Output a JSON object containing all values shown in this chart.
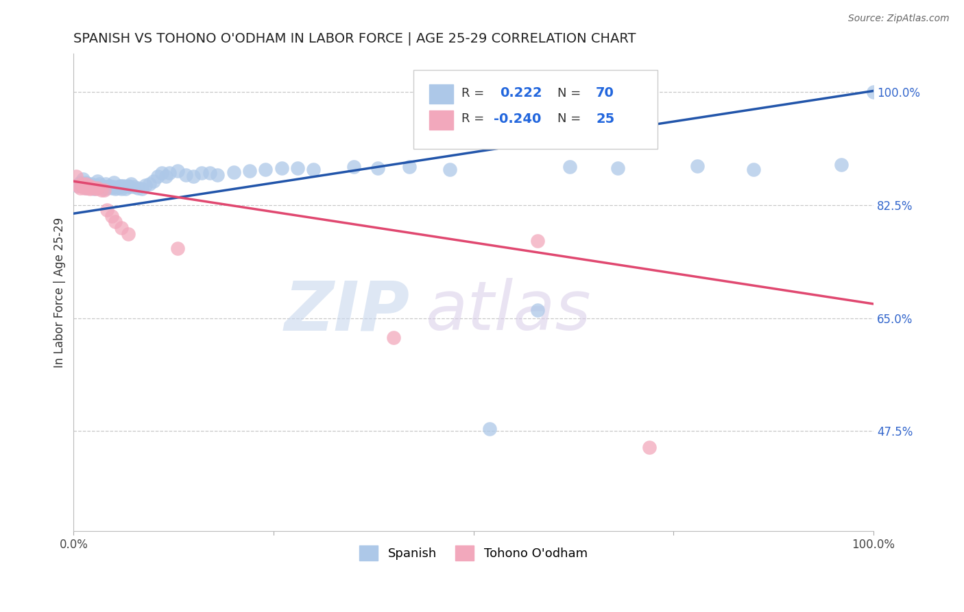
{
  "title": "SPANISH VS TOHONO O'ODHAM IN LABOR FORCE | AGE 25-29 CORRELATION CHART",
  "source_text": "Source: ZipAtlas.com",
  "ylabel": "In Labor Force | Age 25-29",
  "xlim": [
    0.0,
    1.0
  ],
  "ylim": [
    0.32,
    1.06
  ],
  "r_spanish": 0.222,
  "n_spanish": 70,
  "r_tohono": -0.24,
  "n_tohono": 25,
  "spanish_color": "#adc8e8",
  "tohono_color": "#f2a8bc",
  "spanish_line_color": "#2255aa",
  "tohono_line_color": "#e04870",
  "background_color": "#ffffff",
  "grid_color": "#c8c8c8",
  "ytick_positions": [
    1.0,
    0.825,
    0.65,
    0.475
  ],
  "ytick_labels": [
    "100.0%",
    "82.5%",
    "65.0%",
    "47.5%"
  ],
  "spanish_line_y0": 0.812,
  "spanish_line_y1": 1.002,
  "tohono_line_y0": 0.862,
  "tohono_line_y1": 0.672,
  "spanish_x": [
    0.005,
    0.008,
    0.01,
    0.012,
    0.014,
    0.015,
    0.015,
    0.016,
    0.018,
    0.02,
    0.022,
    0.025,
    0.025,
    0.028,
    0.03,
    0.03,
    0.032,
    0.035,
    0.038,
    0.04,
    0.04,
    0.042,
    0.045,
    0.048,
    0.05,
    0.05,
    0.052,
    0.055,
    0.058,
    0.06,
    0.06,
    0.063,
    0.065,
    0.068,
    0.07,
    0.072,
    0.075,
    0.08,
    0.085,
    0.09,
    0.095,
    0.1,
    0.105,
    0.11,
    0.115,
    0.12,
    0.13,
    0.14,
    0.15,
    0.16,
    0.17,
    0.18,
    0.2,
    0.22,
    0.24,
    0.26,
    0.28,
    0.3,
    0.35,
    0.38,
    0.42,
    0.47,
    0.52,
    0.58,
    0.62,
    0.68,
    0.78,
    0.85,
    0.96,
    1.0
  ],
  "spanish_y": [
    0.855,
    0.86,
    0.855,
    0.865,
    0.858,
    0.86,
    0.855,
    0.852,
    0.858,
    0.854,
    0.858,
    0.854,
    0.85,
    0.856,
    0.862,
    0.852,
    0.858,
    0.855,
    0.85,
    0.858,
    0.854,
    0.852,
    0.855,
    0.852,
    0.86,
    0.854,
    0.85,
    0.852,
    0.855,
    0.855,
    0.85,
    0.855,
    0.85,
    0.855,
    0.854,
    0.858,
    0.854,
    0.852,
    0.85,
    0.856,
    0.858,
    0.862,
    0.87,
    0.875,
    0.87,
    0.875,
    0.878,
    0.872,
    0.87,
    0.875,
    0.875,
    0.872,
    0.876,
    0.878,
    0.88,
    0.882,
    0.882,
    0.88,
    0.885,
    0.882,
    0.885,
    0.88,
    0.478,
    0.662,
    0.885,
    0.882,
    0.886,
    0.88,
    0.888,
    1.0
  ],
  "tohono_x": [
    0.003,
    0.006,
    0.008,
    0.01,
    0.012,
    0.013,
    0.015,
    0.017,
    0.02,
    0.02,
    0.022,
    0.025,
    0.028,
    0.03,
    0.035,
    0.038,
    0.042,
    0.048,
    0.052,
    0.06,
    0.068,
    0.13,
    0.4,
    0.72,
    0.58
  ],
  "tohono_y": [
    0.87,
    0.855,
    0.852,
    0.858,
    0.855,
    0.852,
    0.858,
    0.852,
    0.855,
    0.85,
    0.852,
    0.852,
    0.85,
    0.852,
    0.848,
    0.848,
    0.818,
    0.808,
    0.8,
    0.79,
    0.78,
    0.758,
    0.62,
    0.45,
    0.77
  ]
}
